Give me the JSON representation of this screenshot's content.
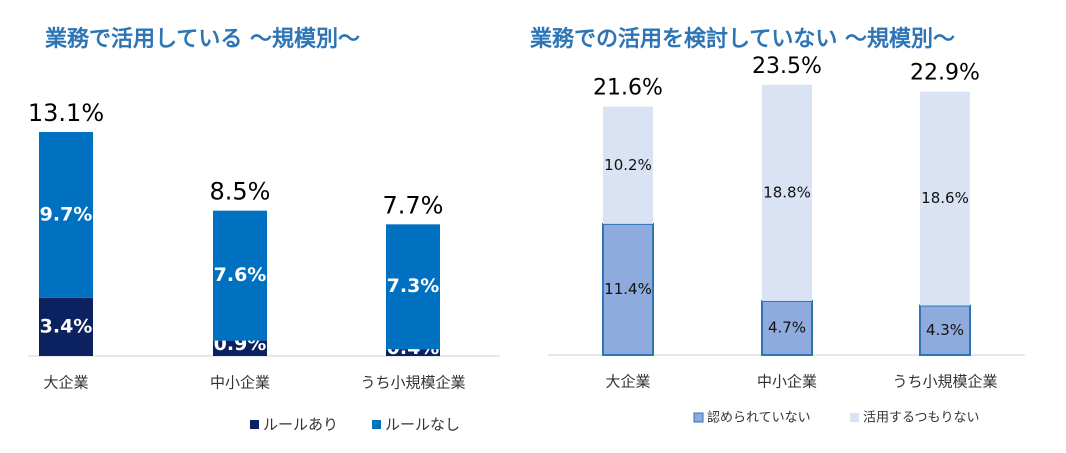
{
  "chart_data": [
    {
      "type": "bar",
      "stacked": true,
      "title": "業務で活用している ～規模別～",
      "categories": [
        "大企業",
        "中小企業",
        "うち小規模企業"
      ],
      "series": [
        {
          "name": "ルールあり",
          "color": "#0b2160",
          "values": [
            3.4,
            0.9,
            0.4
          ],
          "value_labels": [
            "3.4%",
            "0.9%",
            "0.4%"
          ]
        },
        {
          "name": "ルールなし",
          "color": "#0070c0",
          "values": [
            9.7,
            7.6,
            7.3
          ],
          "value_labels": [
            "9.7%",
            "7.6%",
            "7.3%"
          ]
        }
      ],
      "total_labels": [
        "13.1%",
        "8.5%",
        "7.7%"
      ]
    },
    {
      "type": "bar",
      "stacked": true,
      "title": "業務での活用を検討していない ～規模別～",
      "categories": [
        "大企業",
        "中小企業",
        "うち小規模企業"
      ],
      "series": [
        {
          "name": "認められていない",
          "color": "#8faadc",
          "values": [
            11.4,
            4.7,
            4.3
          ],
          "value_labels": [
            "11.4%",
            "4.7%",
            "4.3%"
          ]
        },
        {
          "name": "活用するつもりない",
          "color": "#dae3f3",
          "values": [
            10.2,
            18.8,
            18.6
          ],
          "value_labels": [
            "10.2%",
            "18.8%",
            "18.6%"
          ]
        }
      ],
      "total_labels": [
        "21.6%",
        "23.5%",
        "22.9%"
      ]
    }
  ]
}
